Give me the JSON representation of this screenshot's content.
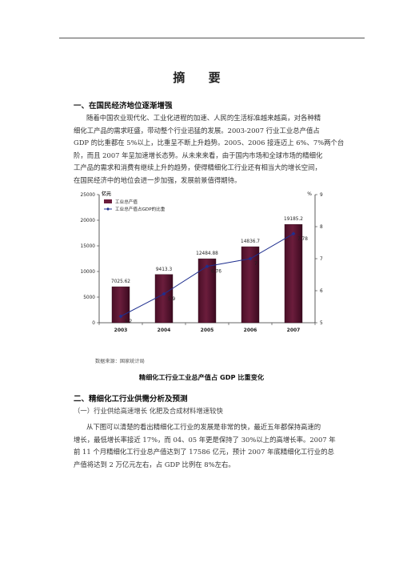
{
  "title": "摘  要",
  "section1": {
    "heading": "一、在国民经济地位逐渐增强",
    "lines": [
      "随着中国农业现代化、工业化进程的加速、人民的生活标准越来越高，对各种精",
      "细化工产品的需求旺盛，带动整个行业迅猛的发展。2003-2007 行业工业总产值占",
      "GDP 的比重都在 5%以上，比重呈不断上升趋势。2005、2006 接连迈上 6%、7%两个台",
      "阶，而且 2007 年呈加速增长态势。从未来来看，由于国内市场和全球市场的精细化",
      "工产品的需求和消费有继续上升的趋势，使得精细化工行业还有相当大的增长空间，",
      "在国民经济中的地位会进一步加强，发展前景值得期待。"
    ]
  },
  "chart_data": {
    "type": "bar",
    "categories": [
      "2003",
      "2004",
      "2005",
      "2006",
      "2007"
    ],
    "series": [
      {
        "name": "工业总产值",
        "type": "bar",
        "axis": "left",
        "values": [
          7025.62,
          9413.3,
          12484.88,
          14836.7,
          19185.2
        ],
        "labels": [
          "7025.62",
          "9413.3",
          "12484.88",
          "14836.7",
          "19185.2"
        ]
      },
      {
        "name": "工业总产值占GDP的比重",
        "type": "line",
        "axis": "right",
        "values": [
          5.2,
          5.9,
          6.76,
          7,
          7.78
        ],
        "labels": [
          "5.2",
          "5.9",
          "6.76",
          "7",
          "7.78"
        ]
      }
    ],
    "ylabel_left": "亿元",
    "ylabel_right": "%",
    "ylim_left": [
      0,
      25000
    ],
    "yticks_left": [
      "0",
      "5000",
      "10000",
      "15000",
      "20000",
      "25000"
    ],
    "ylim_right": [
      5,
      9
    ],
    "yticks_right": [
      "5",
      "6",
      "7",
      "8",
      "9"
    ],
    "legend_position": "top-left",
    "bar_color": "#6b1d3c",
    "line_color": "#1f2f8f"
  },
  "source": "数据来源：国家统计局",
  "caption": "精细化工行业工业总产值占 GDP 比重变化",
  "section2": {
    "heading": "二、精细化工行业供需分析及预测",
    "subheading": "（一）行业供给高速增长  化肥及合成材料增速较快",
    "lines": [
      "从下图可以清楚的看出精细化工行业的发展是非常的快，最近五年都保持高速的",
      "增长，最低增长率接近 17%，而 04、05 年更是保持了 30%以上的高增长率。2007 年",
      "前 11 个月精细化工行业总产值达到了 17586 亿元，预计 2007 年底精细化工行业的总",
      "产值将达到 2 万亿元左右，占 GDP 比例在 8%左右。"
    ]
  }
}
